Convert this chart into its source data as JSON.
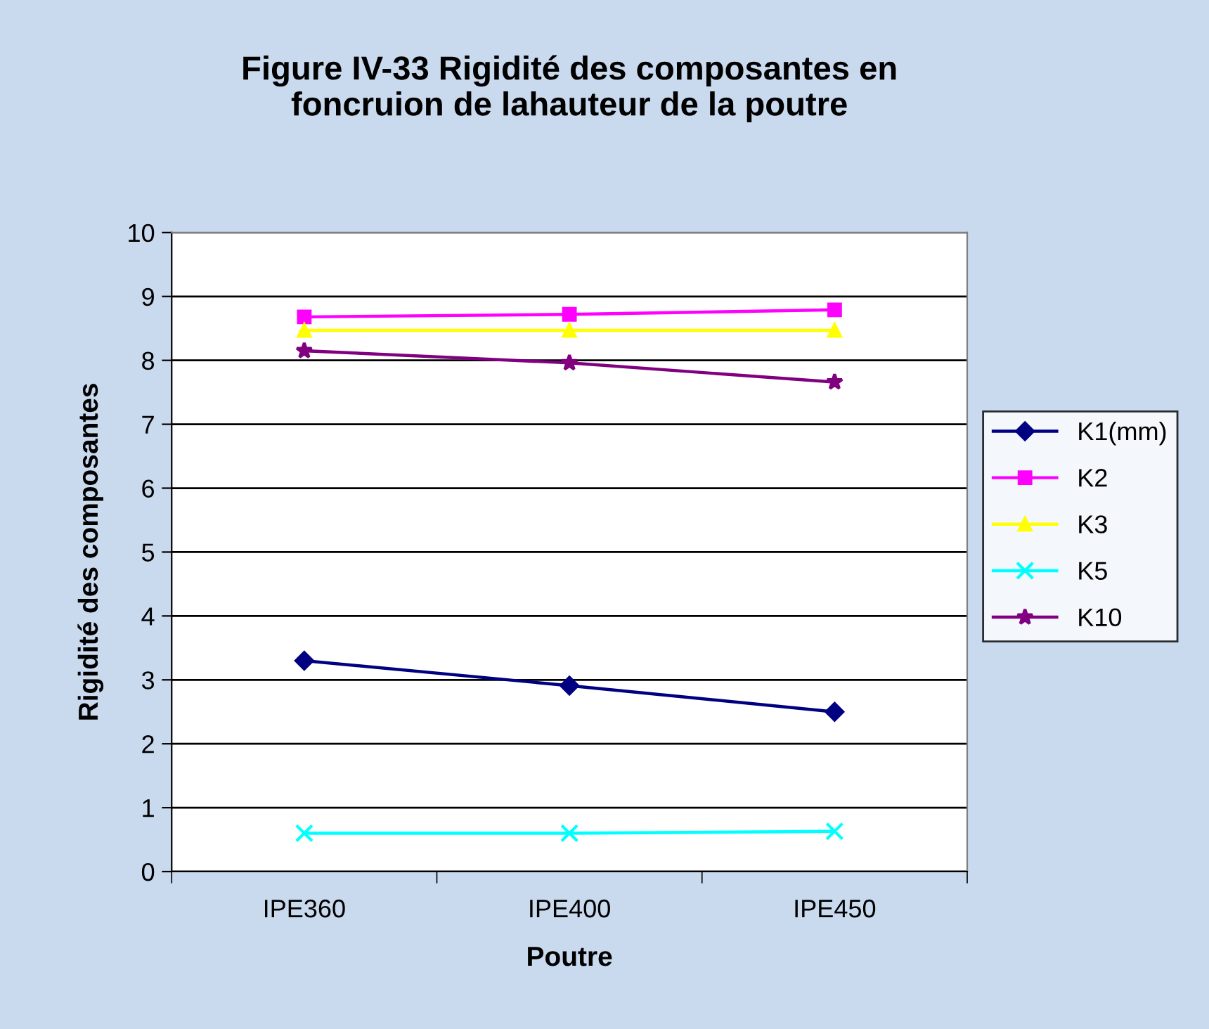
{
  "chart_data": {
    "type": "line",
    "title": "Figure IV-33 Rigidité des composantes en\nfoncruion de lahauteur de la poutre",
    "xlabel": "Poutre",
    "ylabel": "Rigidité des composantes",
    "categories": [
      "IPE360",
      "IPE400",
      "IPE450"
    ],
    "series": [
      {
        "name": "K1(mm)",
        "color": "#000080",
        "marker": "diamond",
        "values": [
          3.3,
          2.91,
          2.5
        ]
      },
      {
        "name": "K2",
        "color": "#ff00ff",
        "marker": "square",
        "values": [
          8.68,
          8.72,
          8.79
        ]
      },
      {
        "name": "K3",
        "color": "#ffff00",
        "marker": "triangle",
        "values": [
          8.47,
          8.47,
          8.47
        ]
      },
      {
        "name": "K5",
        "color": "#00ffff",
        "marker": "cross",
        "values": [
          0.6,
          0.6,
          0.63
        ]
      },
      {
        "name": "K10",
        "color": "#800080",
        "marker": "star",
        "values": [
          8.15,
          7.96,
          7.66
        ]
      }
    ],
    "ylim": [
      0,
      10
    ],
    "yticks": [
      0,
      1,
      2,
      3,
      4,
      5,
      6,
      7,
      8,
      9,
      10
    ],
    "grid": "y",
    "legend": "right",
    "line_style": "solid"
  }
}
